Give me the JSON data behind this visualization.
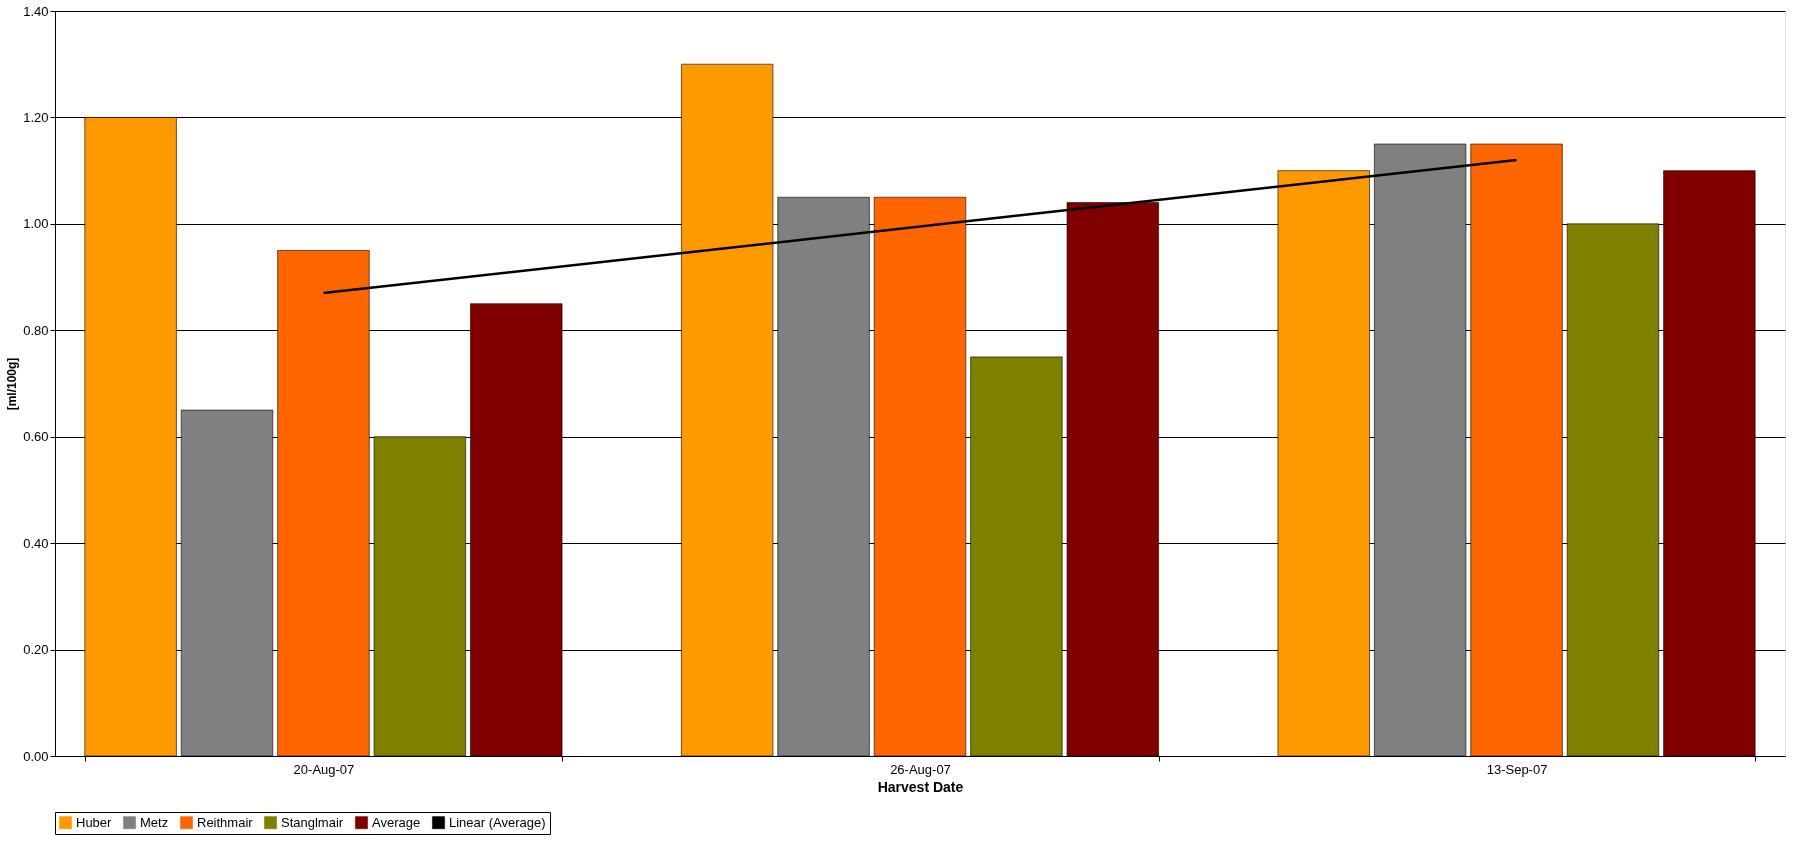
{
  "chart_data": {
    "type": "bar",
    "xlabel": "Harvest Date",
    "ylabel": "[ml/100g]",
    "categories": [
      "20-Aug-07",
      "26-Aug-07",
      "13-Sep-07"
    ],
    "series": [
      {
        "name": "Huber",
        "color": "#ff9900",
        "values": [
          1.2,
          1.3,
          1.1
        ]
      },
      {
        "name": "Metz",
        "color": "#808080",
        "values": [
          0.65,
          1.05,
          1.15
        ]
      },
      {
        "name": "Reithmair",
        "color": "#ff6600",
        "values": [
          0.95,
          1.05,
          1.15
        ]
      },
      {
        "name": "Stanglmair",
        "color": "#808000",
        "values": [
          0.6,
          0.75,
          1.0
        ]
      },
      {
        "name": "Average",
        "color": "#800000",
        "values": [
          0.85,
          1.04,
          1.1
        ]
      },
      {
        "name": "Linear (Average)",
        "color": "#000000",
        "type": "line",
        "values": [
          0.87,
          0.995,
          1.12
        ]
      }
    ],
    "ylim": [
      0,
      1.4
    ],
    "yticks": [
      {
        "value": 0,
        "label": "0.00"
      },
      {
        "value": 0.2,
        "label": "0.20"
      },
      {
        "value": 0.4,
        "label": "0.40"
      },
      {
        "value": 0.6,
        "label": "0.60"
      },
      {
        "value": 0.8,
        "label": "0.80"
      },
      {
        "value": 1.0,
        "label": "1.00"
      },
      {
        "value": 1.2,
        "label": "1.20"
      },
      {
        "value": 1.4,
        "label": "1.40"
      }
    ],
    "grid": "y",
    "legend": "bottom"
  }
}
